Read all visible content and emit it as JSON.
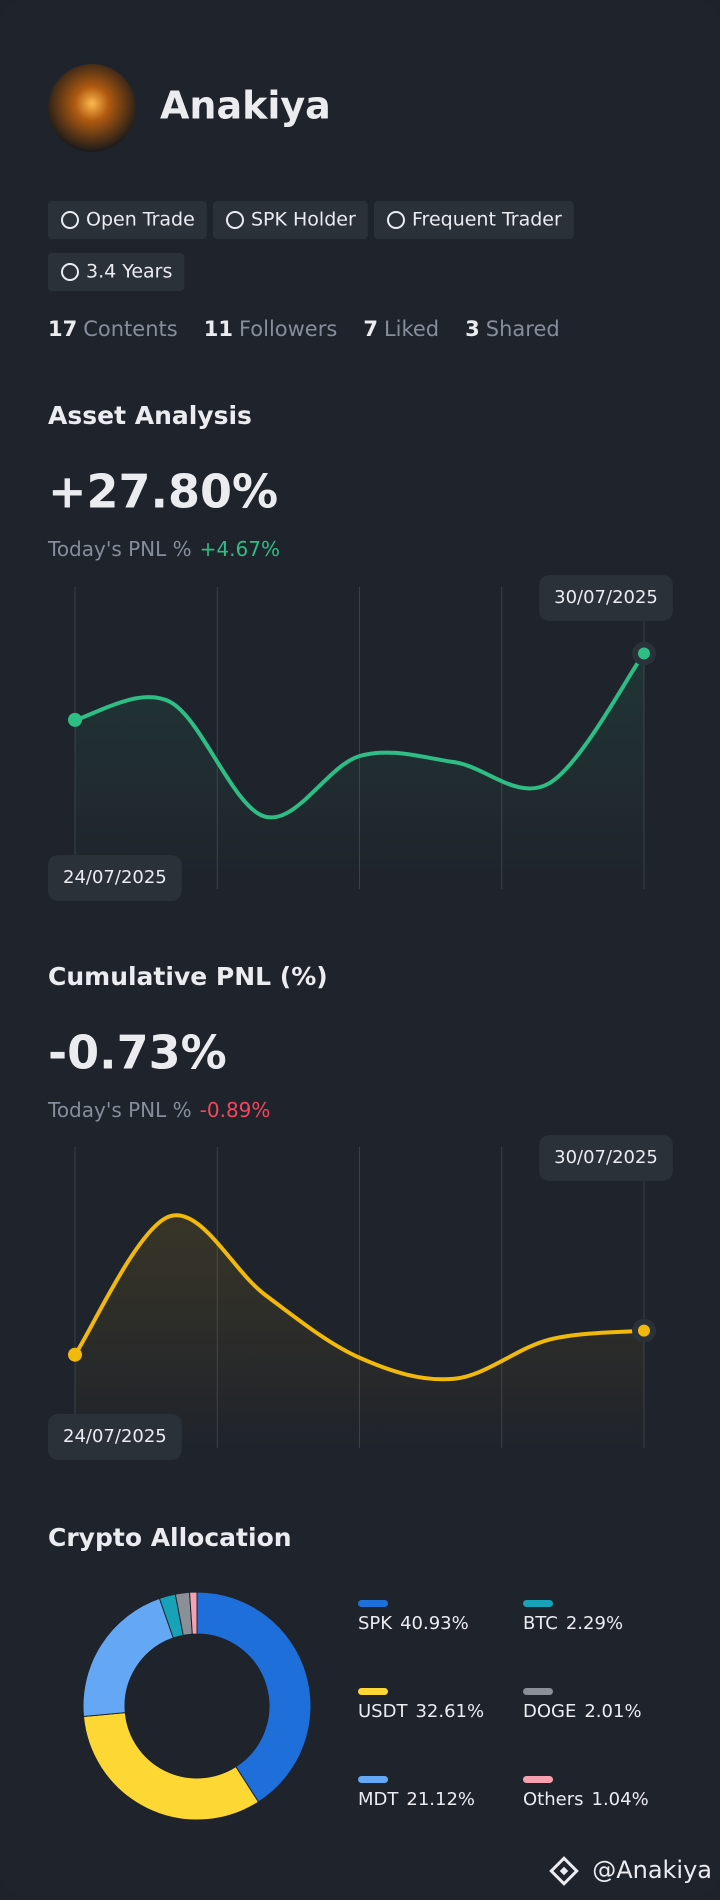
{
  "profile": {
    "name": "Anakiya",
    "tags": [
      "Open Trade",
      "SPK Holder",
      "Frequent Trader",
      "3.4 Years"
    ],
    "stats": [
      {
        "count": 17,
        "label": "Contents"
      },
      {
        "count": 11,
        "label": "Followers"
      },
      {
        "count": 7,
        "label": "Liked"
      },
      {
        "count": 3,
        "label": "Shared"
      }
    ]
  },
  "chart_data": [
    {
      "type": "line",
      "title": "Asset Analysis",
      "headline": "+27.80%",
      "headline_color": "#2ebd85",
      "today_label": "Today's PNL %",
      "today_value": "+4.67%",
      "categories": [
        "24/07/2025",
        null,
        null,
        null,
        null,
        null,
        "30/07/2025"
      ],
      "values": [
        56,
        62,
        24,
        44,
        42,
        35,
        78
      ],
      "color": "#2ebd85",
      "ylim": [
        0,
        100
      ],
      "grid": true
    },
    {
      "type": "line",
      "title": "Cumulative PNL (%)",
      "headline": "-0.73%",
      "headline_color": "#f6465d",
      "today_label": "Today's PNL %",
      "today_value": "-0.89%",
      "categories": [
        "24/07/2025",
        null,
        null,
        null,
        null,
        null,
        "30/07/2025"
      ],
      "values": [
        31,
        77,
        51,
        30,
        23,
        36,
        39
      ],
      "color": "#f0b90b",
      "ylim": [
        0,
        100
      ],
      "grid": true
    },
    {
      "type": "pie",
      "title": "Crypto Allocation",
      "series": [
        {
          "name": "SPK",
          "color": "#1f6fdb",
          "values": [
            40.93
          ],
          "value_labels": [
            "40.93%"
          ]
        },
        {
          "name": "USDT",
          "color": "#fdd835",
          "values": [
            32.61
          ],
          "value_labels": [
            "32.61%"
          ]
        },
        {
          "name": "MDT",
          "color": "#64a8f5",
          "values": [
            21.12
          ],
          "value_labels": [
            "21.12%"
          ]
        },
        {
          "name": "BTC",
          "color": "#17a2b8",
          "values": [
            2.29
          ],
          "value_labels": [
            "2.29%"
          ]
        },
        {
          "name": "DOGE",
          "color": "#8a8f98",
          "values": [
            2.01
          ],
          "value_labels": [
            "2.01%"
          ]
        },
        {
          "name": "Others",
          "color": "#f7a1b0",
          "values": [
            1.04
          ],
          "value_labels": [
            "1.04%"
          ]
        }
      ]
    }
  ],
  "watermark": "@Anakiya"
}
